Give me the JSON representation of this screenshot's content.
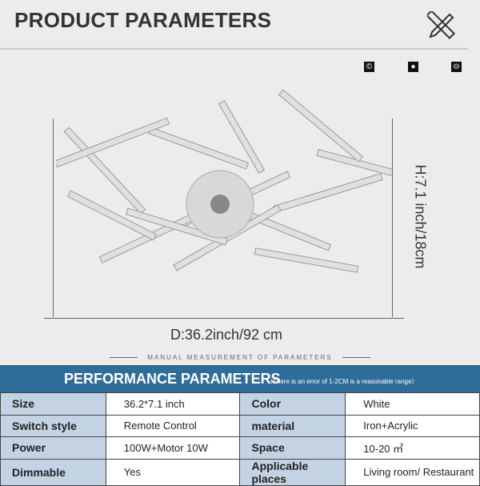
{
  "title": "PRODUCT PARAMETERS",
  "icons": [
    "copyright-icon",
    "rotate-icon",
    "minus-circle-icon"
  ],
  "dimensions": {
    "diameter": "D:36.2inch/92 cm",
    "height": "H:7.1 inch/18cm"
  },
  "manual": "MANUAL MEASUREMENT OF PARAMETERS",
  "performance": {
    "title": "PERFORMANCE PARAMETERS",
    "note": "（There is an error of 1-2CM is a reasonable range）"
  },
  "table": [
    [
      "Size",
      "36.2*7.1 inch",
      "Color",
      "White"
    ],
    [
      "Switch style",
      "Remote Control",
      "material",
      "Iron+Acrylic"
    ],
    [
      "Power",
      "100W+Motor 10W",
      "Space",
      "10-20 ㎡"
    ],
    [
      "Dimmable",
      "Yes",
      "Applicable places",
      "Living room/ Restaurant"
    ]
  ],
  "colors": {
    "header": "#2f6c97",
    "label_cell": "#c3d3e4"
  }
}
